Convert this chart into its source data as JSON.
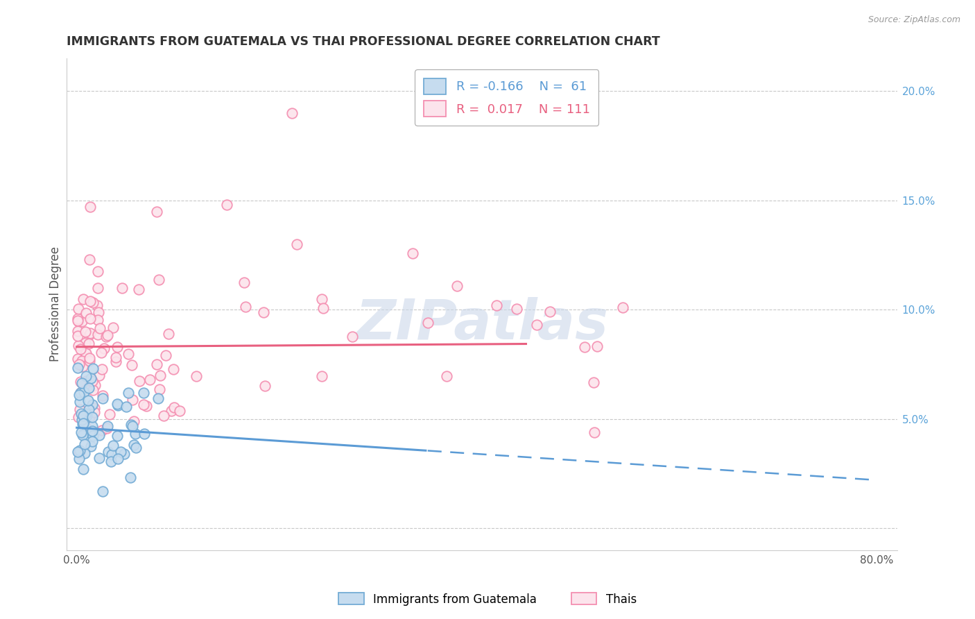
{
  "title": "IMMIGRANTS FROM GUATEMALA VS THAI PROFESSIONAL DEGREE CORRELATION CHART",
  "source_text": "Source: ZipAtlas.com",
  "ylabel": "Professional Degree",
  "legend_blue_label": "Immigrants from Guatemala",
  "legend_pink_label": "Thais",
  "blue_edge_color": "#74acd5",
  "pink_edge_color": "#f48fb1",
  "blue_face_color": "#c6dcef",
  "pink_face_color": "#fce4ec",
  "trend_blue_color": "#5b9bd5",
  "trend_pink_color": "#e86080",
  "watermark_color": "#ccd8ea",
  "background_color": "#ffffff",
  "grid_color": "#c8c8c8",
  "title_color": "#333333",
  "right_axis_color": "#5ba3d9",
  "legend_text_blue": "#5b9bd5",
  "legend_text_pink": "#e86080",
  "figsize": [
    14.06,
    8.92
  ],
  "dpi": 100
}
